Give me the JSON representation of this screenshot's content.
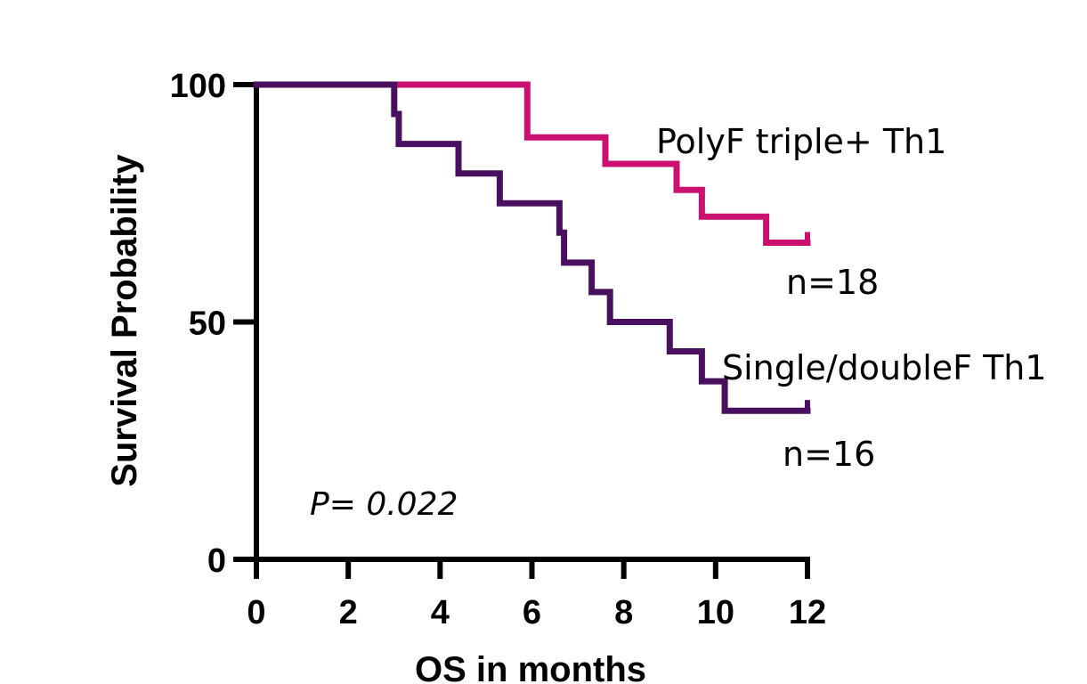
{
  "chart_data": {
    "type": "line",
    "subtype": "kaplan-meier-step",
    "xlabel": "OS in months",
    "ylabel": "Survival Probability",
    "xlim": [
      0,
      12
    ],
    "ylim": [
      0,
      100
    ],
    "x_ticks": [
      "0",
      "2",
      "4",
      "6",
      "8",
      "10",
      "12"
    ],
    "y_ticks": [
      "0",
      "50",
      "100"
    ],
    "grid": false,
    "series": [
      {
        "name": "PolyF triple+ Th1",
        "n_label": "n=18",
        "color": "#cc1070",
        "x": [
          0,
          5.9,
          5.9,
          7.6,
          7.6,
          9.15,
          9.15,
          9.7,
          9.7,
          11.1,
          11.1,
          12
        ],
        "y": [
          100,
          100,
          88.9,
          88.9,
          83.3,
          83.3,
          77.8,
          77.8,
          72.2,
          72.2,
          66.7,
          66.7
        ],
        "censor_end": {
          "x": 12,
          "y": 66.7
        }
      },
      {
        "name": "Single/doubleF Th1",
        "n_label": "n=16",
        "color": "#4a1060",
        "x": [
          0,
          3.0,
          3.0,
          3.1,
          3.1,
          4.4,
          4.4,
          5.3,
          5.3,
          6.6,
          6.6,
          6.7,
          6.7,
          7.3,
          7.3,
          7.7,
          7.7,
          9.0,
          9.0,
          9.7,
          9.7,
          10.2,
          10.2,
          12
        ],
        "y": [
          100,
          100,
          93.8,
          93.8,
          87.5,
          87.5,
          81.3,
          81.3,
          75.0,
          75.0,
          68.8,
          68.8,
          62.5,
          62.5,
          56.3,
          56.3,
          50.0,
          50.0,
          43.8,
          43.8,
          37.5,
          37.5,
          31.3,
          31.3
        ],
        "censor_end": {
          "x": 12,
          "y": 31.3
        }
      }
    ],
    "annotations": {
      "p_value": "P= 0.022"
    }
  }
}
